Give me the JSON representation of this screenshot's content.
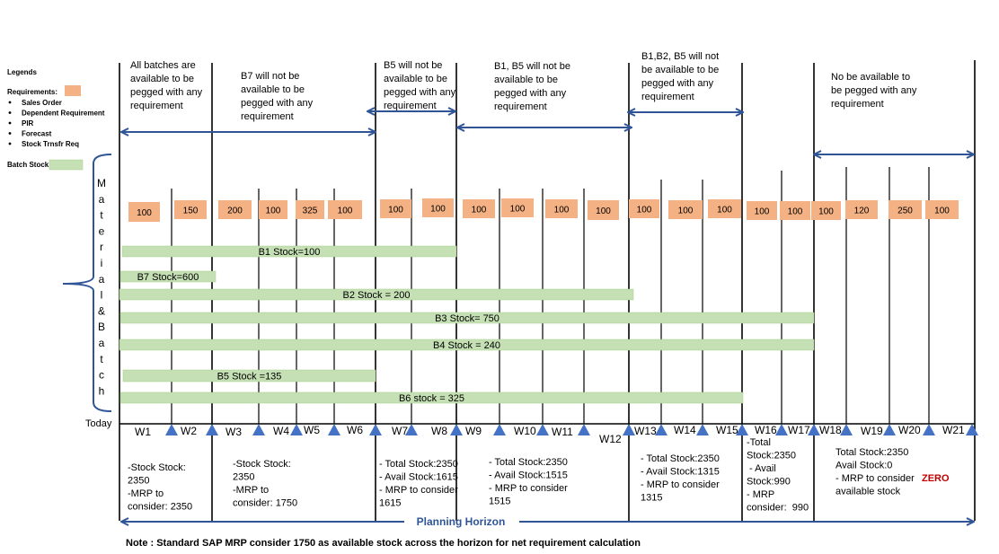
{
  "legend": {
    "title": "Legends",
    "requirements_label": "Requirements:",
    "requirement_types": [
      "Sales Order",
      "Dependent Requirement",
      "PIR",
      "Forecast",
      "Stock Trnsfr Req"
    ],
    "batch_stock_label": "Batch Stock",
    "requirement_color": "#f4b183",
    "batch_color": "#c5e0b4"
  },
  "side_label": {
    "letters": [
      "M",
      "a",
      "t",
      "e",
      "r",
      "i",
      "a",
      "l",
      "&",
      "B",
      "a",
      "t",
      "c",
      "h"
    ]
  },
  "today_label": "Today",
  "segments": [
    {
      "lines": [
        "All batches are",
        "available  to be",
        "pegged with any",
        "requirement"
      ]
    },
    {
      "lines": [
        "B7 will not be",
        "available  to be",
        "pegged with any",
        "requirement"
      ]
    },
    {
      "lines": [
        "B5 will not be",
        "available  to be",
        "pegged with any",
        "requirement"
      ]
    },
    {
      "lines": [
        "B1, B5 will not be",
        "available  to be",
        "pegged with any",
        "requirement"
      ]
    },
    {
      "lines": [
        "B1,B2, B5 will not",
        "be available  to be",
        "pegged with any",
        "requirement"
      ]
    },
    {
      "lines": [
        "No be available  to",
        "be pegged with any",
        "requirement"
      ]
    }
  ],
  "requirements": [
    "100",
    "150",
    "200",
    "100",
    "325",
    "100",
    "100",
    "100",
    "100",
    "100",
    "100",
    "100",
    "100",
    "100",
    "100",
    "100",
    "100",
    "100",
    "120",
    "250",
    "100"
  ],
  "batches": [
    {
      "label": "B1 Stock=100"
    },
    {
      "label": "B7 Stock=600"
    },
    {
      "label": "B2 Stock = 200"
    },
    {
      "label": "B3 Stock= 750"
    },
    {
      "label": "B4 Stock = 240"
    },
    {
      "label": "B5 Stock =135"
    },
    {
      "label": "B6 stock = 325"
    }
  ],
  "weeks": [
    "W1",
    "W2",
    "W3",
    "W4",
    "W5",
    "W6",
    "W7",
    "W8",
    "W9",
    "W10",
    "W11",
    "W12",
    "W13",
    "W14",
    "W15",
    "W16",
    "W17",
    "W18",
    "W19",
    "W20",
    "W21"
  ],
  "stock_notes": [
    {
      "lines": [
        "-Stock Stock:",
        "2350",
        "-MRP to",
        "consider: 2350"
      ]
    },
    {
      "lines": [
        "-Stock Stock:",
        "2350",
        "-MRP to",
        "consider: 1750"
      ]
    },
    {
      "lines": [
        "- Total Stock:2350",
        "- Avail Stock:1615",
        "- MRP to consider",
        "1615"
      ]
    },
    {
      "lines": [
        "- Total Stock:2350",
        "- Avail Stock:1515",
        "- MRP to consider",
        "1515"
      ]
    },
    {
      "lines": [
        "- Total Stock:2350",
        "- Avail Stock:1315",
        "- MRP to consider",
        "1315"
      ]
    },
    {
      "lines": [
        "-Total",
        "Stock:2350",
        " - Avail",
        "Stock:990",
        "- MRP",
        "consider:  990"
      ]
    },
    {
      "lines": [
        "Total Stock:2350",
        "Avail Stock:0",
        "- MRP to consider"
      ],
      "zero_word": "ZERO",
      "last_line": "available stock"
    }
  ],
  "planning_horizon_label": "Planning Horizon",
  "note": "Note : Standard SAP MRP consider 1750 as  available stock across the horizon for net requirement calculation",
  "colors": {
    "arrow": "#2f5597",
    "axis": "#000000",
    "zero": "#c00000"
  }
}
